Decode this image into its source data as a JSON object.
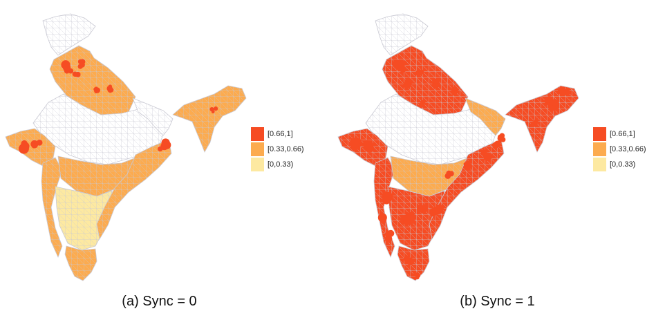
{
  "colors": {
    "high": "#f64c23",
    "mid": "#fcab4f",
    "low": "#fde9a1",
    "none": "#ffffff",
    "border": "#c9c9d3"
  },
  "legend": [
    {
      "label": "[0.66,1]",
      "color": "#f64c23"
    },
    {
      "label": "[0.33,0.66)",
      "color": "#fcab4f"
    },
    {
      "label": "[0,0.33)",
      "color": "#fde9a1"
    }
  ],
  "panels": [
    {
      "caption": "(a) Sync = 0",
      "regions": {
        "north_hills": "none",
        "north_plains": "mid",
        "central_belt": "none",
        "gangetic_east": "none",
        "gujarat": "mid",
        "west_coast": "mid",
        "deccan_north": "mid",
        "deccan_south": "low",
        "east_coast": "mid",
        "far_south": "mid",
        "northeast": "mid"
      },
      "hotspot_level": "high"
    },
    {
      "caption": "(b) Sync = 1",
      "regions": {
        "north_hills": "none",
        "north_plains": "high",
        "central_belt": "none",
        "gangetic_east": "mid",
        "gujarat": "high",
        "west_coast": "high",
        "deccan_north": "mid",
        "deccan_south": "high",
        "east_coast": "high",
        "far_south": "high",
        "northeast": "high"
      },
      "hotspot_level": "high"
    }
  ]
}
